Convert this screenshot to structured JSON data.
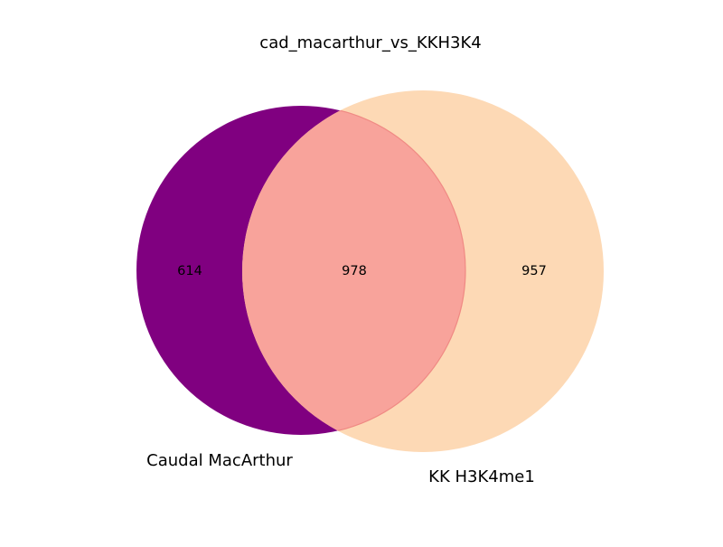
{
  "title": "cad_macarthur_vs_KKH3K4",
  "chart_data": {
    "type": "venn",
    "sets": [
      {
        "name": "Caudal MacArthur",
        "only_count": "614",
        "color": "#800080"
      },
      {
        "name": "KK H3K4me1",
        "only_count": "957",
        "color": "#fdd9b5"
      }
    ],
    "intersection": {
      "count": "978",
      "color": "#f8a39b"
    }
  }
}
